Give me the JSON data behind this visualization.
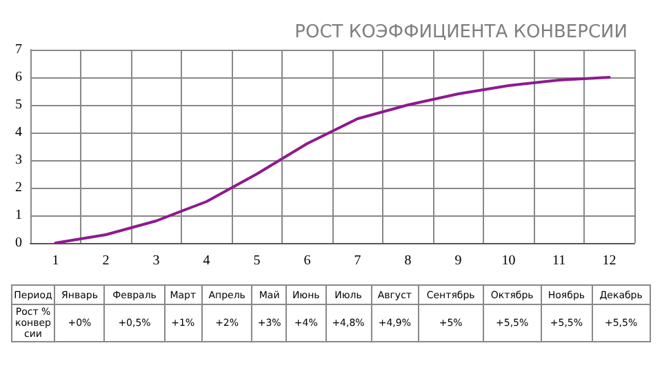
{
  "chart_data": [
    {
      "type": "line",
      "title": "РОСТ КОЭФФИЦИЕНТА КОНВЕРСИИ",
      "categories": [
        "1",
        "2",
        "3",
        "4",
        "5",
        "6",
        "7",
        "8",
        "9",
        "10",
        "11",
        "12"
      ],
      "series": [
        {
          "color": "#8e1a8e",
          "values": [
            0,
            0.3,
            0.8,
            1.5,
            2.5,
            3.6,
            4.5,
            5.0,
            5.4,
            5.7,
            5.9,
            6.0
          ]
        }
      ],
      "ylim": [
        0,
        7
      ],
      "yticks": [
        0,
        1,
        2,
        3,
        4,
        5,
        6,
        7
      ],
      "grid": true,
      "marker": "none",
      "line_style": "solid"
    },
    {
      "type": "other",
      "xlabel": "Период",
      "ylabel": "Рост % конверсии",
      "categories": [
        "Январь",
        "Февраль",
        "Март",
        "Апрель",
        "Май",
        "Июнь",
        "Июль",
        "Август",
        "Сентябрь",
        "Октябрь",
        "Ноябрь",
        "Декабрь"
      ],
      "value_labels": [
        "+0%",
        "+0,5%",
        "+1%",
        "+2%",
        "+3%",
        "+4%",
        "+4,8%",
        "+4,9%",
        "+5%",
        "+5,5%",
        "+5,5%",
        "+5,5%"
      ]
    }
  ]
}
